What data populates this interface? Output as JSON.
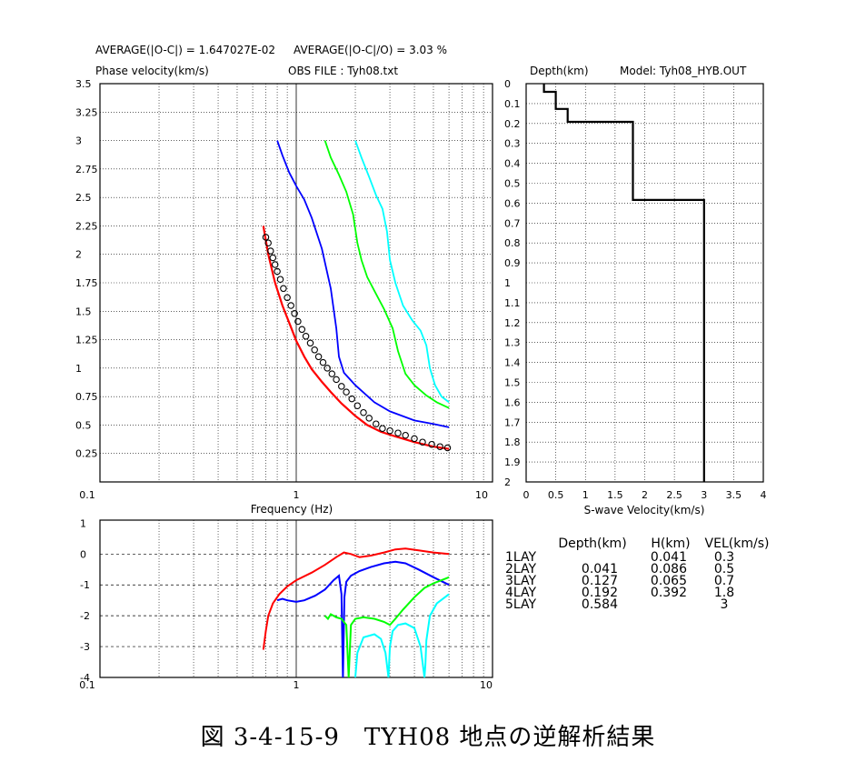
{
  "header": {
    "avg_abs": "AVERAGE(|O-C|) = 1.647027E-02",
    "avg_rel": "AVERAGE(|O-C|/O) = 3.03 %",
    "ylabel": "Phase velocity(km/s)",
    "obs_file": "OBS FILE : Tyh08.txt"
  },
  "profile_header": {
    "depth_label": "Depth(km)",
    "model": "Model: Tyh08_HYB.OUT"
  },
  "caption": "図 3-4-15-9　TYH08 地点の逆解析結果",
  "layer_table": {
    "columns": [
      "Depth(km)",
      "H(km)",
      "VEL(km/s)"
    ],
    "rows": [
      {
        "name": "1LAY",
        "depth": "",
        "h": "0.041",
        "vel": "0.3"
      },
      {
        "name": "2LAY",
        "depth": "0.041",
        "h": "0.086",
        "vel": "0.5"
      },
      {
        "name": "3LAY",
        "depth": "0.127",
        "h": "0.065",
        "vel": "0.7"
      },
      {
        "name": "4LAY",
        "depth": "0.192",
        "h": "0.392",
        "vel": "1.8"
      },
      {
        "name": "5LAY",
        "depth": "0.584",
        "h": "",
        "vel": "3"
      }
    ]
  },
  "colors": {
    "obs": "#000000",
    "fit": "#ff0000",
    "m1": "#0000ff",
    "m2": "#00ff00",
    "m3": "#00ffff",
    "grid": "#000000"
  },
  "chart_data": [
    {
      "type": "line",
      "title": "",
      "xlabel": "Frequency (Hz)",
      "ylabel": "Phase velocity(km/s)",
      "xscale": "log",
      "xlim": [
        0.1,
        10
      ],
      "ylim": [
        0.25,
        3.5
      ],
      "xticks": [
        "0.1",
        "1",
        "10"
      ],
      "yticks": [
        "0.25",
        "0.5",
        "0.75",
        "1",
        "1.25",
        "1.5",
        "1.75",
        "2",
        "2.25",
        "2.5",
        "2.75",
        "3",
        "3.25",
        "3.5"
      ],
      "grid": true,
      "observed": {
        "name": "observed",
        "marker": "circle",
        "x": [
          0.7,
          0.72,
          0.74,
          0.76,
          0.78,
          0.8,
          0.83,
          0.86,
          0.9,
          0.94,
          0.98,
          1.02,
          1.07,
          1.12,
          1.18,
          1.24,
          1.3,
          1.37,
          1.44,
          1.52,
          1.6,
          1.7,
          1.8,
          1.92,
          2.05,
          2.2,
          2.35,
          2.55,
          2.75,
          3.0,
          3.3,
          3.6,
          4.0,
          4.4,
          4.9,
          5.4,
          5.9
        ],
        "y": [
          2.15,
          2.1,
          2.03,
          1.97,
          1.91,
          1.85,
          1.78,
          1.7,
          1.62,
          1.55,
          1.48,
          1.41,
          1.34,
          1.28,
          1.22,
          1.16,
          1.1,
          1.05,
          1.0,
          0.95,
          0.9,
          0.84,
          0.79,
          0.73,
          0.67,
          0.61,
          0.56,
          0.51,
          0.47,
          0.45,
          0.43,
          0.41,
          0.38,
          0.35,
          0.33,
          0.31,
          0.3
        ]
      },
      "series": [
        {
          "color": "#ff0000",
          "x": [
            0.68,
            0.72,
            0.78,
            0.85,
            0.93,
            1.0,
            1.1,
            1.2,
            1.35,
            1.5,
            1.7,
            2.0,
            2.3,
            2.7,
            3.2,
            4.0,
            5.0,
            6.0
          ],
          "y": [
            2.25,
            2.0,
            1.75,
            1.55,
            1.38,
            1.24,
            1.1,
            0.99,
            0.88,
            0.79,
            0.69,
            0.58,
            0.5,
            0.44,
            0.4,
            0.35,
            0.31,
            0.29
          ]
        },
        {
          "color": "#0000ff",
          "x": [
            0.8,
            0.85,
            0.92,
            1.0,
            1.1,
            1.2,
            1.35,
            1.5,
            1.6,
            1.65,
            1.75,
            2.0,
            2.5,
            3.0,
            4.0,
            5.0,
            6.0
          ],
          "y": [
            3.0,
            2.87,
            2.72,
            2.6,
            2.48,
            2.32,
            2.05,
            1.7,
            1.35,
            1.1,
            0.96,
            0.85,
            0.7,
            0.62,
            0.54,
            0.51,
            0.48
          ]
        },
        {
          "color": "#00ff00",
          "x": [
            1.4,
            1.5,
            1.65,
            1.8,
            1.95,
            2.05,
            2.15,
            2.3,
            2.5,
            2.8,
            3.1,
            3.3,
            3.6,
            4.0,
            4.6,
            5.2,
            6.0
          ],
          "y": [
            3.0,
            2.85,
            2.7,
            2.55,
            2.35,
            2.1,
            1.95,
            1.8,
            1.68,
            1.52,
            1.35,
            1.15,
            0.95,
            0.85,
            0.76,
            0.7,
            0.65
          ]
        },
        {
          "color": "#00ffff",
          "x": [
            2.0,
            2.15,
            2.35,
            2.55,
            2.75,
            2.9,
            3.0,
            3.2,
            3.5,
            3.9,
            4.3,
            4.6,
            4.8,
            5.1,
            5.5,
            6.0
          ],
          "y": [
            3.0,
            2.85,
            2.68,
            2.52,
            2.4,
            2.2,
            1.95,
            1.75,
            1.55,
            1.42,
            1.33,
            1.2,
            1.0,
            0.85,
            0.75,
            0.7
          ]
        }
      ]
    },
    {
      "type": "line",
      "title": "",
      "xlabel": "S-wave Velocity(km/s)",
      "ylabel": "Depth(km)",
      "xlim": [
        0,
        4
      ],
      "ylim": [
        0,
        2
      ],
      "xticks": [
        "0",
        "0.5",
        "1",
        "1.5",
        "2",
        "2.5",
        "3",
        "3.5",
        "4"
      ],
      "yticks": [
        "0",
        "0.1",
        "0.2",
        "0.3",
        "0.4",
        "0.5",
        "0.6",
        "0.7",
        "0.8",
        "0.9",
        "1",
        "1.1",
        "1.2",
        "1.3",
        "1.4",
        "1.5",
        "1.6",
        "1.7",
        "1.8",
        "1.9",
        "2"
      ],
      "grid": true,
      "series": [
        {
          "color": "#000000",
          "velocity": [
            0.3,
            0.5,
            0.7,
            1.8,
            3.0
          ],
          "top": [
            0,
            0.041,
            0.127,
            0.192,
            0.584
          ],
          "bottom": [
            0.041,
            0.127,
            0.192,
            0.584,
            2.0
          ]
        }
      ]
    },
    {
      "type": "line",
      "title": "",
      "xlabel": "",
      "xscale": "log",
      "xlim": [
        0.1,
        10
      ],
      "ylim": [
        -4,
        1
      ],
      "xticks": [
        "0.1",
        "1",
        "10"
      ],
      "yticks": [
        "-4",
        "-3",
        "-2",
        "-1",
        "0",
        "1"
      ],
      "grid": true,
      "series": [
        {
          "color": "#ff0000",
          "x": [
            0.68,
            0.7,
            0.72,
            0.76,
            0.82,
            0.9,
            1.0,
            1.2,
            1.4,
            1.6,
            1.75,
            1.9,
            2.1,
            2.4,
            2.8,
            3.2,
            3.6,
            4.2,
            5.0,
            6.0
          ],
          "y": [
            -3.1,
            -2.5,
            -2.0,
            -1.6,
            -1.3,
            -1.05,
            -0.85,
            -0.6,
            -0.35,
            -0.1,
            0.05,
            0.0,
            -0.1,
            -0.05,
            0.05,
            0.15,
            0.18,
            0.12,
            0.05,
            0.0
          ]
        },
        {
          "color": "#0000ff",
          "x": [
            0.8,
            0.85,
            0.9,
            1.0,
            1.1,
            1.25,
            1.4,
            1.55,
            1.65,
            1.7,
            1.73,
            1.76,
            1.8,
            1.9,
            2.1,
            2.4,
            2.8,
            3.2,
            3.6,
            4.2,
            5.0,
            6.0
          ],
          "y": [
            -1.5,
            -1.45,
            -1.5,
            -1.55,
            -1.5,
            -1.35,
            -1.15,
            -0.85,
            -0.7,
            -1.3,
            -4.0,
            -1.4,
            -0.9,
            -0.7,
            -0.55,
            -0.42,
            -0.3,
            -0.25,
            -0.3,
            -0.5,
            -0.75,
            -1.0
          ]
        },
        {
          "color": "#00ff00",
          "x": [
            1.4,
            1.45,
            1.5,
            1.6,
            1.7,
            1.8,
            1.85,
            1.9,
            2.0,
            2.2,
            2.5,
            2.8,
            3.0,
            3.2,
            3.5,
            4.0,
            4.5,
            5.0,
            5.5,
            6.0
          ],
          "y": [
            -2.0,
            -2.1,
            -1.95,
            -2.05,
            -2.1,
            -2.3,
            -4.0,
            -2.3,
            -2.1,
            -2.05,
            -2.1,
            -2.2,
            -2.3,
            -2.1,
            -1.8,
            -1.4,
            -1.1,
            -0.95,
            -0.85,
            -0.75
          ]
        },
        {
          "color": "#00ffff",
          "x": [
            2.0,
            2.05,
            2.2,
            2.5,
            2.7,
            2.85,
            2.95,
            3.0,
            3.1,
            3.3,
            3.6,
            4.0,
            4.3,
            4.5,
            4.55,
            4.6,
            4.8,
            5.2,
            6.0
          ],
          "y": [
            -4.0,
            -3.2,
            -2.7,
            -2.6,
            -2.75,
            -3.2,
            -4.0,
            -3.0,
            -2.5,
            -2.3,
            -2.25,
            -2.4,
            -3.0,
            -4.0,
            -3.6,
            -2.8,
            -2.0,
            -1.6,
            -1.3
          ]
        }
      ]
    }
  ]
}
